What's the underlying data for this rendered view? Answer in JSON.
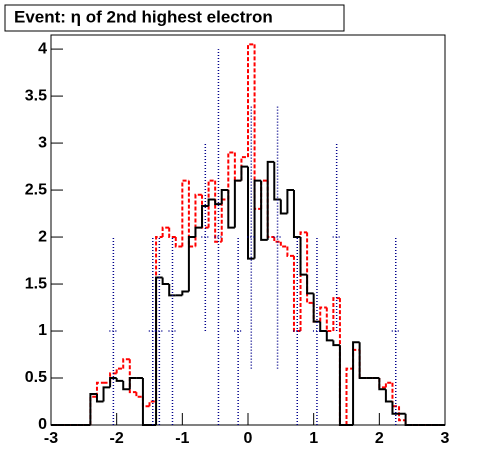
{
  "chart_data": {
    "type": "histogram",
    "title": "Event: η of 2nd highest electron",
    "bins": [
      -3,
      -2.9,
      -2.8,
      -2.7,
      -2.6,
      -2.5,
      -2.4,
      -2.3,
      -2.2,
      -2.1,
      -2,
      -1.9,
      -1.8,
      -1.7,
      -1.6,
      -1.5,
      -1.4,
      -1.3,
      -1.2,
      -1.1,
      -1,
      -0.9,
      -0.8,
      -0.7,
      -0.6,
      -0.5,
      -0.4,
      -0.3,
      -0.2,
      -0.1,
      0,
      0.1,
      0.2,
      0.3,
      0.4,
      0.5,
      0.6,
      0.7,
      0.8,
      0.9,
      1,
      1.1,
      1.2,
      1.3,
      1.4,
      1.5,
      1.6,
      1.7,
      1.8,
      1.9,
      2,
      2.1,
      2.2,
      2.3,
      2.4,
      2.5,
      2.6,
      2.7,
      2.8,
      2.9,
      3
    ],
    "series": [
      {
        "color": "#ff0000",
        "style": "dashed",
        "values": [
          0,
          0,
          0,
          0,
          0,
          0,
          0.3,
          0.45,
          0.45,
          0.55,
          0.6,
          0.7,
          0.35,
          0.3,
          0.2,
          0.25,
          2.0,
          2.1,
          2.0,
          1.9,
          2.6,
          1.9,
          2.45,
          2.1,
          2.6,
          1.95,
          2.4,
          2.9,
          2.6,
          2.85,
          4.05,
          2.3,
          2.6,
          2.0,
          1.95,
          1.9,
          1.8,
          1.0,
          2.05,
          1.3,
          1.1,
          1.25,
          1.0,
          1.35,
          0,
          0.6,
          0.8,
          0.5,
          0.5,
          0.5,
          0.4,
          0.45,
          0.2,
          0.05,
          0,
          0,
          0,
          0,
          0,
          0
        ]
      },
      {
        "color": "#000000",
        "style": "solid",
        "values": [
          0,
          0,
          0,
          0,
          0,
          0,
          0.33,
          0.25,
          0.4,
          0.5,
          0.47,
          0.38,
          0.5,
          0.5,
          0,
          0,
          1.57,
          1.5,
          1.38,
          1.38,
          1.42,
          2.0,
          2.1,
          2.33,
          2.4,
          2.35,
          2.5,
          2.1,
          2.6,
          2.75,
          1.77,
          2.6,
          1.97,
          2.8,
          2.4,
          2.25,
          2.5,
          2.0,
          1.6,
          1.4,
          1.1,
          1.0,
          0.9,
          0.85,
          0,
          0,
          0.88,
          0.5,
          0.5,
          0.5,
          0.38,
          0.25,
          0.12,
          0.12,
          0,
          0,
          0,
          0,
          0,
          0
        ]
      }
    ],
    "points": {
      "color": "#00008b",
      "x": [
        -2.05,
        -1.45,
        -1.35,
        -1.15,
        -0.65,
        -0.45,
        -0.15,
        0.05,
        0.45,
        0.75,
        1.05,
        1.35,
        2.25
      ],
      "values": [
        1,
        1,
        1,
        1,
        2,
        2,
        1,
        2,
        2,
        1,
        1,
        2,
        1
      ],
      "errors": [
        1,
        1,
        1,
        1,
        1,
        2,
        1,
        1.4,
        1.4,
        1,
        1,
        1,
        1
      ]
    },
    "xlim": [
      -3,
      3
    ],
    "xticks": [
      -3,
      -2,
      -1,
      0,
      1,
      2,
      3
    ],
    "ylim": [
      0,
      4.15
    ],
    "yticks": [
      0,
      0.5,
      1,
      1.5,
      2,
      2.5,
      3,
      3.5,
      4
    ]
  }
}
